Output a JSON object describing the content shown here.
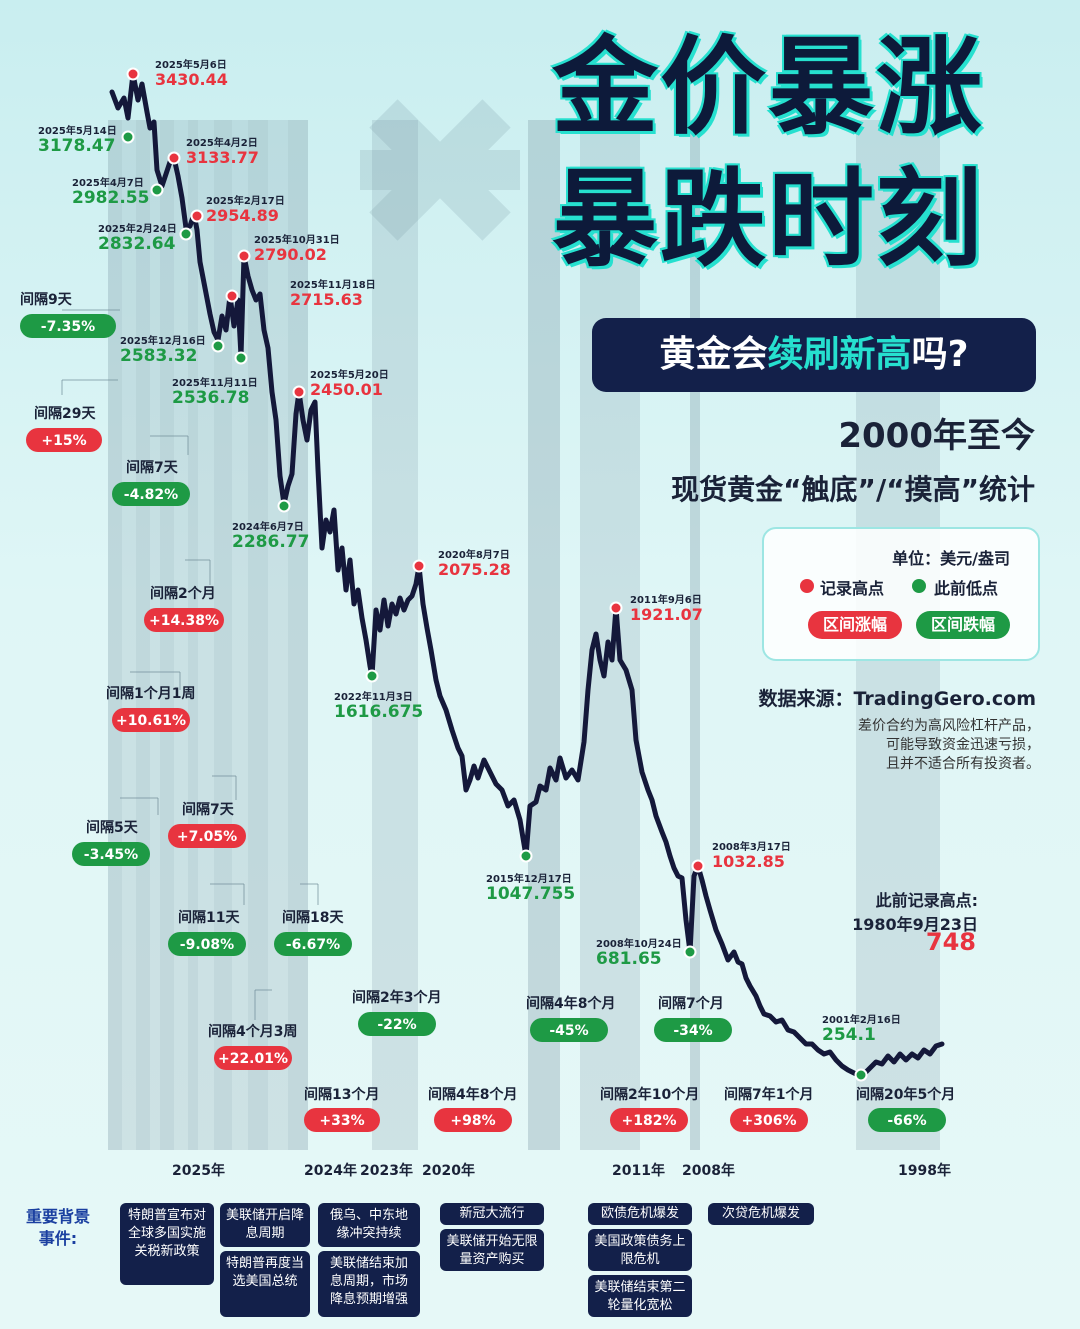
{
  "header": {
    "title_line1": "金价暴涨",
    "title_line2": "暴跌时刻",
    "banner_prefix": "黄金会",
    "banner_highlight": "续刷新高",
    "banner_suffix": "吗?",
    "since": "2000年至今",
    "subtitle": "现货黄金“触底”/“摸高”统计"
  },
  "legend": {
    "unit": "单位：美元/盎司",
    "high_label": "记录高点",
    "low_label": "此前低点",
    "rise_label": "区间涨幅",
    "fall_label": "区间跌幅"
  },
  "source": {
    "text": "数据来源：TradingGero.com",
    "disclaimer1": "差价合约为高风险杠杆产品，",
    "disclaimer2": "可能导致资金迅速亏损，",
    "disclaimer3": "且并不适合所有投资者。"
  },
  "prior_record": {
    "label": "此前记录高点:",
    "date": "1980年9月23日",
    "value": "748"
  },
  "colors": {
    "high": "#e8343f",
    "low": "#1e9a45",
    "line": "#14183a",
    "banner": "#13204a",
    "accent": "#26e0cf"
  },
  "chart_data": {
    "type": "line",
    "title": "金价暴涨暴跌时刻",
    "ylabel": "美元/盎司",
    "x_direction": "reversed (right = older, left = newer)",
    "points": [
      {
        "date": "2025年5月6日",
        "value": "3430.44",
        "kind": "high"
      },
      {
        "date": "2025年5月14日",
        "value": "3178.47",
        "kind": "low"
      },
      {
        "date": "2025年4月2日",
        "value": "3133.77",
        "kind": "high"
      },
      {
        "date": "2025年4月7日",
        "value": "2982.55",
        "kind": "low"
      },
      {
        "date": "2025年2月17日",
        "value": "2954.89",
        "kind": "high"
      },
      {
        "date": "2025年2月24日",
        "value": "2832.64",
        "kind": "low"
      },
      {
        "date": "2025年10月31日",
        "value": "2790.02",
        "kind": "high"
      },
      {
        "date": "2025年11月18日",
        "value": "2715.63",
        "kind": "high"
      },
      {
        "date": "2025年12月16日",
        "value": "2583.32",
        "kind": "low"
      },
      {
        "date": "2025年11月11日",
        "value": "2536.78",
        "kind": "low"
      },
      {
        "date": "2025年5月20日",
        "value": "2450.01",
        "kind": "high"
      },
      {
        "date": "2024年6月7日",
        "value": "2286.77",
        "kind": "low"
      },
      {
        "date": "2020年8月7日",
        "value": "2075.28",
        "kind": "high"
      },
      {
        "date": "2022年11月3日",
        "value": "1616.675",
        "kind": "low"
      },
      {
        "date": "2011年9月6日",
        "value": "1921.07",
        "kind": "high"
      },
      {
        "date": "2015年12月17日",
        "value": "1047.755",
        "kind": "low"
      },
      {
        "date": "2008年3月17日",
        "value": "1032.85",
        "kind": "high"
      },
      {
        "date": "2008年10月24日",
        "value": "681.65",
        "kind": "low"
      },
      {
        "date": "2001年2月16日",
        "value": "254.1",
        "kind": "low"
      }
    ],
    "intervals": [
      {
        "gap": "间隔9天",
        "change": "-7.35%",
        "kind": "fall"
      },
      {
        "gap": "间隔29天",
        "change": "+15%",
        "kind": "rise"
      },
      {
        "gap": "间隔7天",
        "change": "-4.82%",
        "kind": "fall"
      },
      {
        "gap": "间隔2个月",
        "change": "+14.38%",
        "kind": "rise"
      },
      {
        "gap": "间隔1个月1周",
        "change": "+10.61%",
        "kind": "rise"
      },
      {
        "gap": "间隔7天",
        "change": "+7.05%",
        "kind": "rise"
      },
      {
        "gap": "间隔5天",
        "change": "-3.45%",
        "kind": "fall"
      },
      {
        "gap": "间隔11天",
        "change": "-9.08%",
        "kind": "fall"
      },
      {
        "gap": "间隔18天",
        "change": "-6.67%",
        "kind": "fall"
      },
      {
        "gap": "间隔4个月3周",
        "change": "+22.01%",
        "kind": "rise"
      },
      {
        "gap": "间隔2年3个月",
        "change": "-22%",
        "kind": "fall"
      },
      {
        "gap": "间隔13个月",
        "change": "+33%",
        "kind": "rise"
      },
      {
        "gap": "间隔4年8个月",
        "change": "+98%",
        "kind": "rise"
      },
      {
        "gap": "间隔4年8个月",
        "change": "-45%",
        "kind": "fall"
      },
      {
        "gap": "间隔7个月",
        "change": "-34%",
        "kind": "fall"
      },
      {
        "gap": "间隔2年10个月",
        "change": "+182%",
        "kind": "rise"
      },
      {
        "gap": "间隔7年1个月",
        "change": "+306%",
        "kind": "rise"
      },
      {
        "gap": "间隔20年5个月",
        "change": "-66%",
        "kind": "fall"
      }
    ],
    "year_ticks": [
      "2025年",
      "2024年",
      "2023年",
      "2020年",
      "2011年",
      "2008年",
      "1998年"
    ]
  },
  "events": {
    "label": "重要背景事件:",
    "items": [
      "特朗普宣布对全球多国实施关税新政策",
      "美联储开启降息周期",
      "特朗普再度当选美国总统",
      "俄乌、中东地缘冲突持续",
      "美联储结束加息周期，市场降息预期增强",
      "新冠大流行",
      "美联储开始无限量资产购买",
      "欧债危机爆发",
      "美国政策债务上限危机",
      "美联储结束第二轮量化宽松",
      "次贷危机爆发"
    ]
  }
}
